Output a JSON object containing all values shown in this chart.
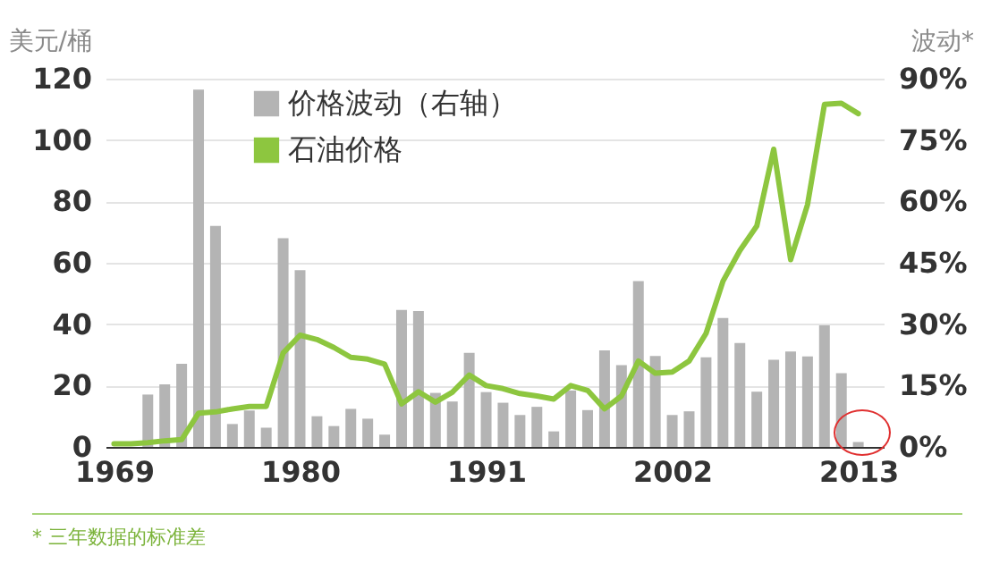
{
  "chart_data": {
    "type": "bar",
    "ylabel": "美元/桶",
    "y2label": "波动*",
    "xlim": [
      1968.5,
      2014.5
    ],
    "xticks": [
      1969,
      1980,
      1991,
      2002,
      2013
    ],
    "ylim": [
      0,
      120
    ],
    "yticks": [
      0,
      20,
      40,
      60,
      80,
      100,
      120
    ],
    "y2lim": [
      0,
      90
    ],
    "y2ticks": [
      {
        "value": 0,
        "label": "0%"
      },
      {
        "value": 15,
        "label": "15%"
      },
      {
        "value": 30,
        "label": "30%"
      },
      {
        "value": 45,
        "label": "45%"
      },
      {
        "value": 60,
        "label": "60%"
      },
      {
        "value": 75,
        "label": "75%"
      },
      {
        "value": 90,
        "label": "90%"
      }
    ],
    "grid": "y",
    "legend": "top",
    "series": [
      {
        "name": "价格波动（右轴）",
        "type": "bar",
        "axis": "y2",
        "color": "#b4b4b4",
        "x": [
          1971,
          1972,
          1973,
          1974,
          1975,
          1976,
          1977,
          1978,
          1979,
          1980,
          1981,
          1982,
          1983,
          1984,
          1985,
          1986,
          1987,
          1988,
          1989,
          1990,
          1991,
          1992,
          1993,
          1994,
          1995,
          1996,
          1997,
          1998,
          1999,
          2000,
          2001,
          2002,
          2003,
          2004,
          2005,
          2006,
          2007,
          2008,
          2009,
          2010,
          2011,
          2012,
          2013
        ],
        "values": [
          12.8,
          15.3,
          20.3,
          87.3,
          54,
          5.6,
          8.9,
          4.7,
          51,
          43.2,
          7.5,
          5.1,
          9.3,
          6.9,
          3,
          33.5,
          33.2,
          13.2,
          11.1,
          23,
          13.4,
          10.8,
          7.8,
          9.8,
          3.8,
          13.8,
          9,
          23.6,
          20,
          40.5,
          22.2,
          7.8,
          8.7,
          21.9,
          31.5,
          25.4,
          13.5,
          21.3,
          23.3,
          22.1,
          29.7,
          18,
          1.2
        ]
      },
      {
        "name": "石油价格",
        "type": "line",
        "color": "#8dc63f",
        "x": [
          1969,
          1970,
          1971,
          1972,
          1973,
          1974,
          1975,
          1976,
          1977,
          1978,
          1979,
          1980,
          1981,
          1982,
          1983,
          1984,
          1985,
          1986,
          1987,
          1988,
          1989,
          1990,
          1991,
          1992,
          1993,
          1994,
          1995,
          1996,
          1997,
          1998,
          1999,
          2000,
          2001,
          2002,
          2003,
          2004,
          2005,
          2006,
          2007,
          2008,
          2009,
          2010,
          2011,
          2012,
          2013
        ],
        "values": [
          1,
          1,
          1.4,
          2,
          2.4,
          11,
          11.4,
          12.4,
          13.2,
          13.2,
          30.6,
          36.4,
          35,
          32.4,
          29.2,
          28.6,
          27,
          14,
          18,
          14.6,
          17.8,
          23.4,
          20,
          19,
          17.4,
          16.6,
          15.6,
          20,
          18.4,
          12.4,
          16.6,
          28,
          24,
          24.4,
          28,
          37,
          54,
          64,
          72,
          97,
          61,
          79,
          111.6,
          112,
          108.6
        ]
      }
    ],
    "annotations": [
      "* 三年数据的标准差"
    ]
  }
}
